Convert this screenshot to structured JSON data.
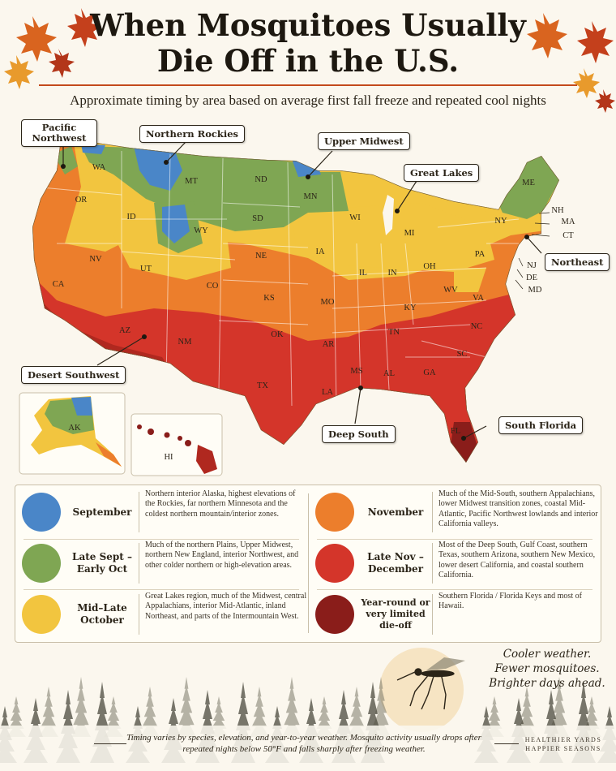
{
  "title": {
    "line1": "When Mosquitoes Usually",
    "line2": "Die Off in the U.S."
  },
  "subtitle": "Approximate timing by area based on average first fall freeze and repeated cool nights",
  "colors": {
    "september": "#4a86c8",
    "late_sept_early_oct": "#7fa653",
    "mid_late_october": "#f2c53f",
    "november": "#ec7e2c",
    "late_nov_december": "#d4352a",
    "year_round": "#8a1d1a",
    "accent_rule": "#c44a1c"
  },
  "callouts": {
    "pacific_northwest": "Pacific Northwest",
    "northern_rockies": "Northern Rockies",
    "upper_midwest": "Upper Midwest",
    "great_lakes": "Great Lakes",
    "northeast": "Northeast",
    "desert_southwest": "Desert Southwest",
    "deep_south": "Deep South",
    "south_florida": "South Florida"
  },
  "state_labels": [
    "WA",
    "MT",
    "ND",
    "MN",
    "ME",
    "OR",
    "ID",
    "SD",
    "WI",
    "MI",
    "NY",
    "NH",
    "MA",
    "CT",
    "WY",
    "NE",
    "IA",
    "PA",
    "NJ",
    "DE",
    "MD",
    "NV",
    "UT",
    "CO",
    "IL",
    "IN",
    "OH",
    "CA",
    "KS",
    "MO",
    "KY",
    "WV",
    "VA",
    "AZ",
    "NM",
    "OK",
    "AR",
    "TN",
    "NC",
    "SC",
    "TX",
    "LA",
    "MS",
    "AL",
    "GA",
    "FL",
    "AK",
    "HI"
  ],
  "legend": [
    {
      "name": "September",
      "color_key": "september",
      "description": "Northern interior Alaska, highest elevations of the Rockies, far northern Minnesota and the coldest northern mountain/interior zones."
    },
    {
      "name": "Late Sept – Early Oct",
      "color_key": "late_sept_early_oct",
      "description": "Much of the northern Plains, Upper Midwest, northern New England, interior Northwest, and other colder northern or high-elevation areas."
    },
    {
      "name": "Mid–Late October",
      "color_key": "mid_late_october",
      "description": "Great Lakes region, much of the Midwest, central Appalachians, interior Mid-Atlantic, inland Northeast, and parts of the Intermountain West."
    },
    {
      "name": "November",
      "color_key": "november",
      "description": "Much of the Mid-South, southern Appalachians, lower Midwest transition zones, coastal Mid-Atlantic, Pacific Northwest lowlands and interior California valleys."
    },
    {
      "name": "Late Nov – December",
      "color_key": "late_nov_december",
      "description": "Most of the Deep South, Gulf Coast, southern Texas, southern Arizona, southern New Mexico, lower desert California, and coastal southern California."
    },
    {
      "name": "Year-round or very limited die-off",
      "color_key": "year_round",
      "description": "Southern Florida / Florida Keys and most of Hawaii."
    }
  ],
  "tagline": [
    "Cooler weather.",
    "Fewer mosquitoes.",
    "Brighter days ahead."
  ],
  "footnote": "Timing varies by species, elevation, and year-to-year weather. Mosquito activity usually drops after repeated nights below 50°F and falls sharply after freezing weather.",
  "brand": {
    "line1": "HEALTHIER YARDS",
    "line2": "HAPPIER SEASONS"
  }
}
